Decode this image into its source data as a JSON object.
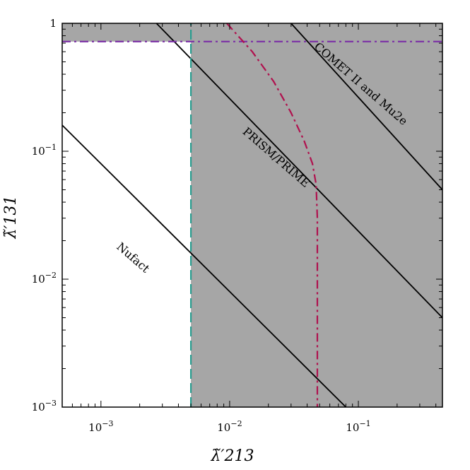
{
  "chart_data": {
    "type": "line",
    "xlabel": "λ̃′213",
    "ylabel": "λ̃′131",
    "xscale": "log",
    "yscale": "log",
    "xlim": [
      0.0005,
      0.45
    ],
    "ylim": [
      0.001,
      1
    ],
    "x_ticks": [
      {
        "value": 0.001,
        "label": "10−3"
      },
      {
        "value": 0.01,
        "label": "10−2"
      },
      {
        "value": 0.1,
        "label": "10−1"
      }
    ],
    "y_ticks": [
      {
        "value": 0.001,
        "label": "10−3"
      },
      {
        "value": 0.01,
        "label": "10−2"
      },
      {
        "value": 0.1,
        "label": "10−1"
      },
      {
        "value": 1,
        "label": "1"
      }
    ],
    "shaded_regions": [
      {
        "name": "excluded-x",
        "x_min": 0.005,
        "x_max": 0.45,
        "y_min": 0.001,
        "y_max": 1,
        "color": "#a6a6a6"
      },
      {
        "name": "excluded-y",
        "x_min": 0.0005,
        "x_max": 0.45,
        "y_min": 0.72,
        "y_max": 1,
        "color": "#a6a6a6"
      }
    ],
    "series": [
      {
        "name": "COMET II and Mu2e",
        "style": "solid",
        "color": "#000000",
        "x": [
          0.03,
          0.45
        ],
        "y": [
          1,
          0.05
        ]
      },
      {
        "name": "PRISM/PRIME",
        "style": "solid",
        "color": "#000000",
        "x": [
          0.0027,
          0.45
        ],
        "y": [
          1,
          0.005
        ]
      },
      {
        "name": "Nufact",
        "style": "solid",
        "color": "#000000",
        "x": [
          0.0005,
          0.08
        ],
        "y": [
          0.16,
          0.001
        ]
      },
      {
        "style": "dashed",
        "color": "#2a9d8f",
        "x": [
          0.005,
          0.005
        ],
        "y": [
          0.001,
          1
        ]
      },
      {
        "style": "dashdot",
        "color": "#7b2fa6",
        "x": [
          0.0005,
          0.45
        ],
        "y": [
          0.72,
          0.72
        ]
      },
      {
        "style": "dashdot",
        "color": "#b0114e",
        "x": [
          0.0095,
          0.015,
          0.022,
          0.03,
          0.038,
          0.044,
          0.047,
          0.048,
          0.048
        ],
        "y": [
          1,
          0.6,
          0.35,
          0.2,
          0.12,
          0.08,
          0.055,
          0.03,
          0.001
        ]
      }
    ],
    "annotations": [
      {
        "text": "COMET II and Mu2e",
        "x": 0.1,
        "y": 0.32,
        "angle": 41
      },
      {
        "text": "PRISM/PRIME",
        "x": 0.022,
        "y": 0.085,
        "angle": 41
      },
      {
        "text": "Nufact",
        "x": 0.0017,
        "y": 0.014,
        "angle": 41
      }
    ],
    "grid": false,
    "legend": "none"
  }
}
